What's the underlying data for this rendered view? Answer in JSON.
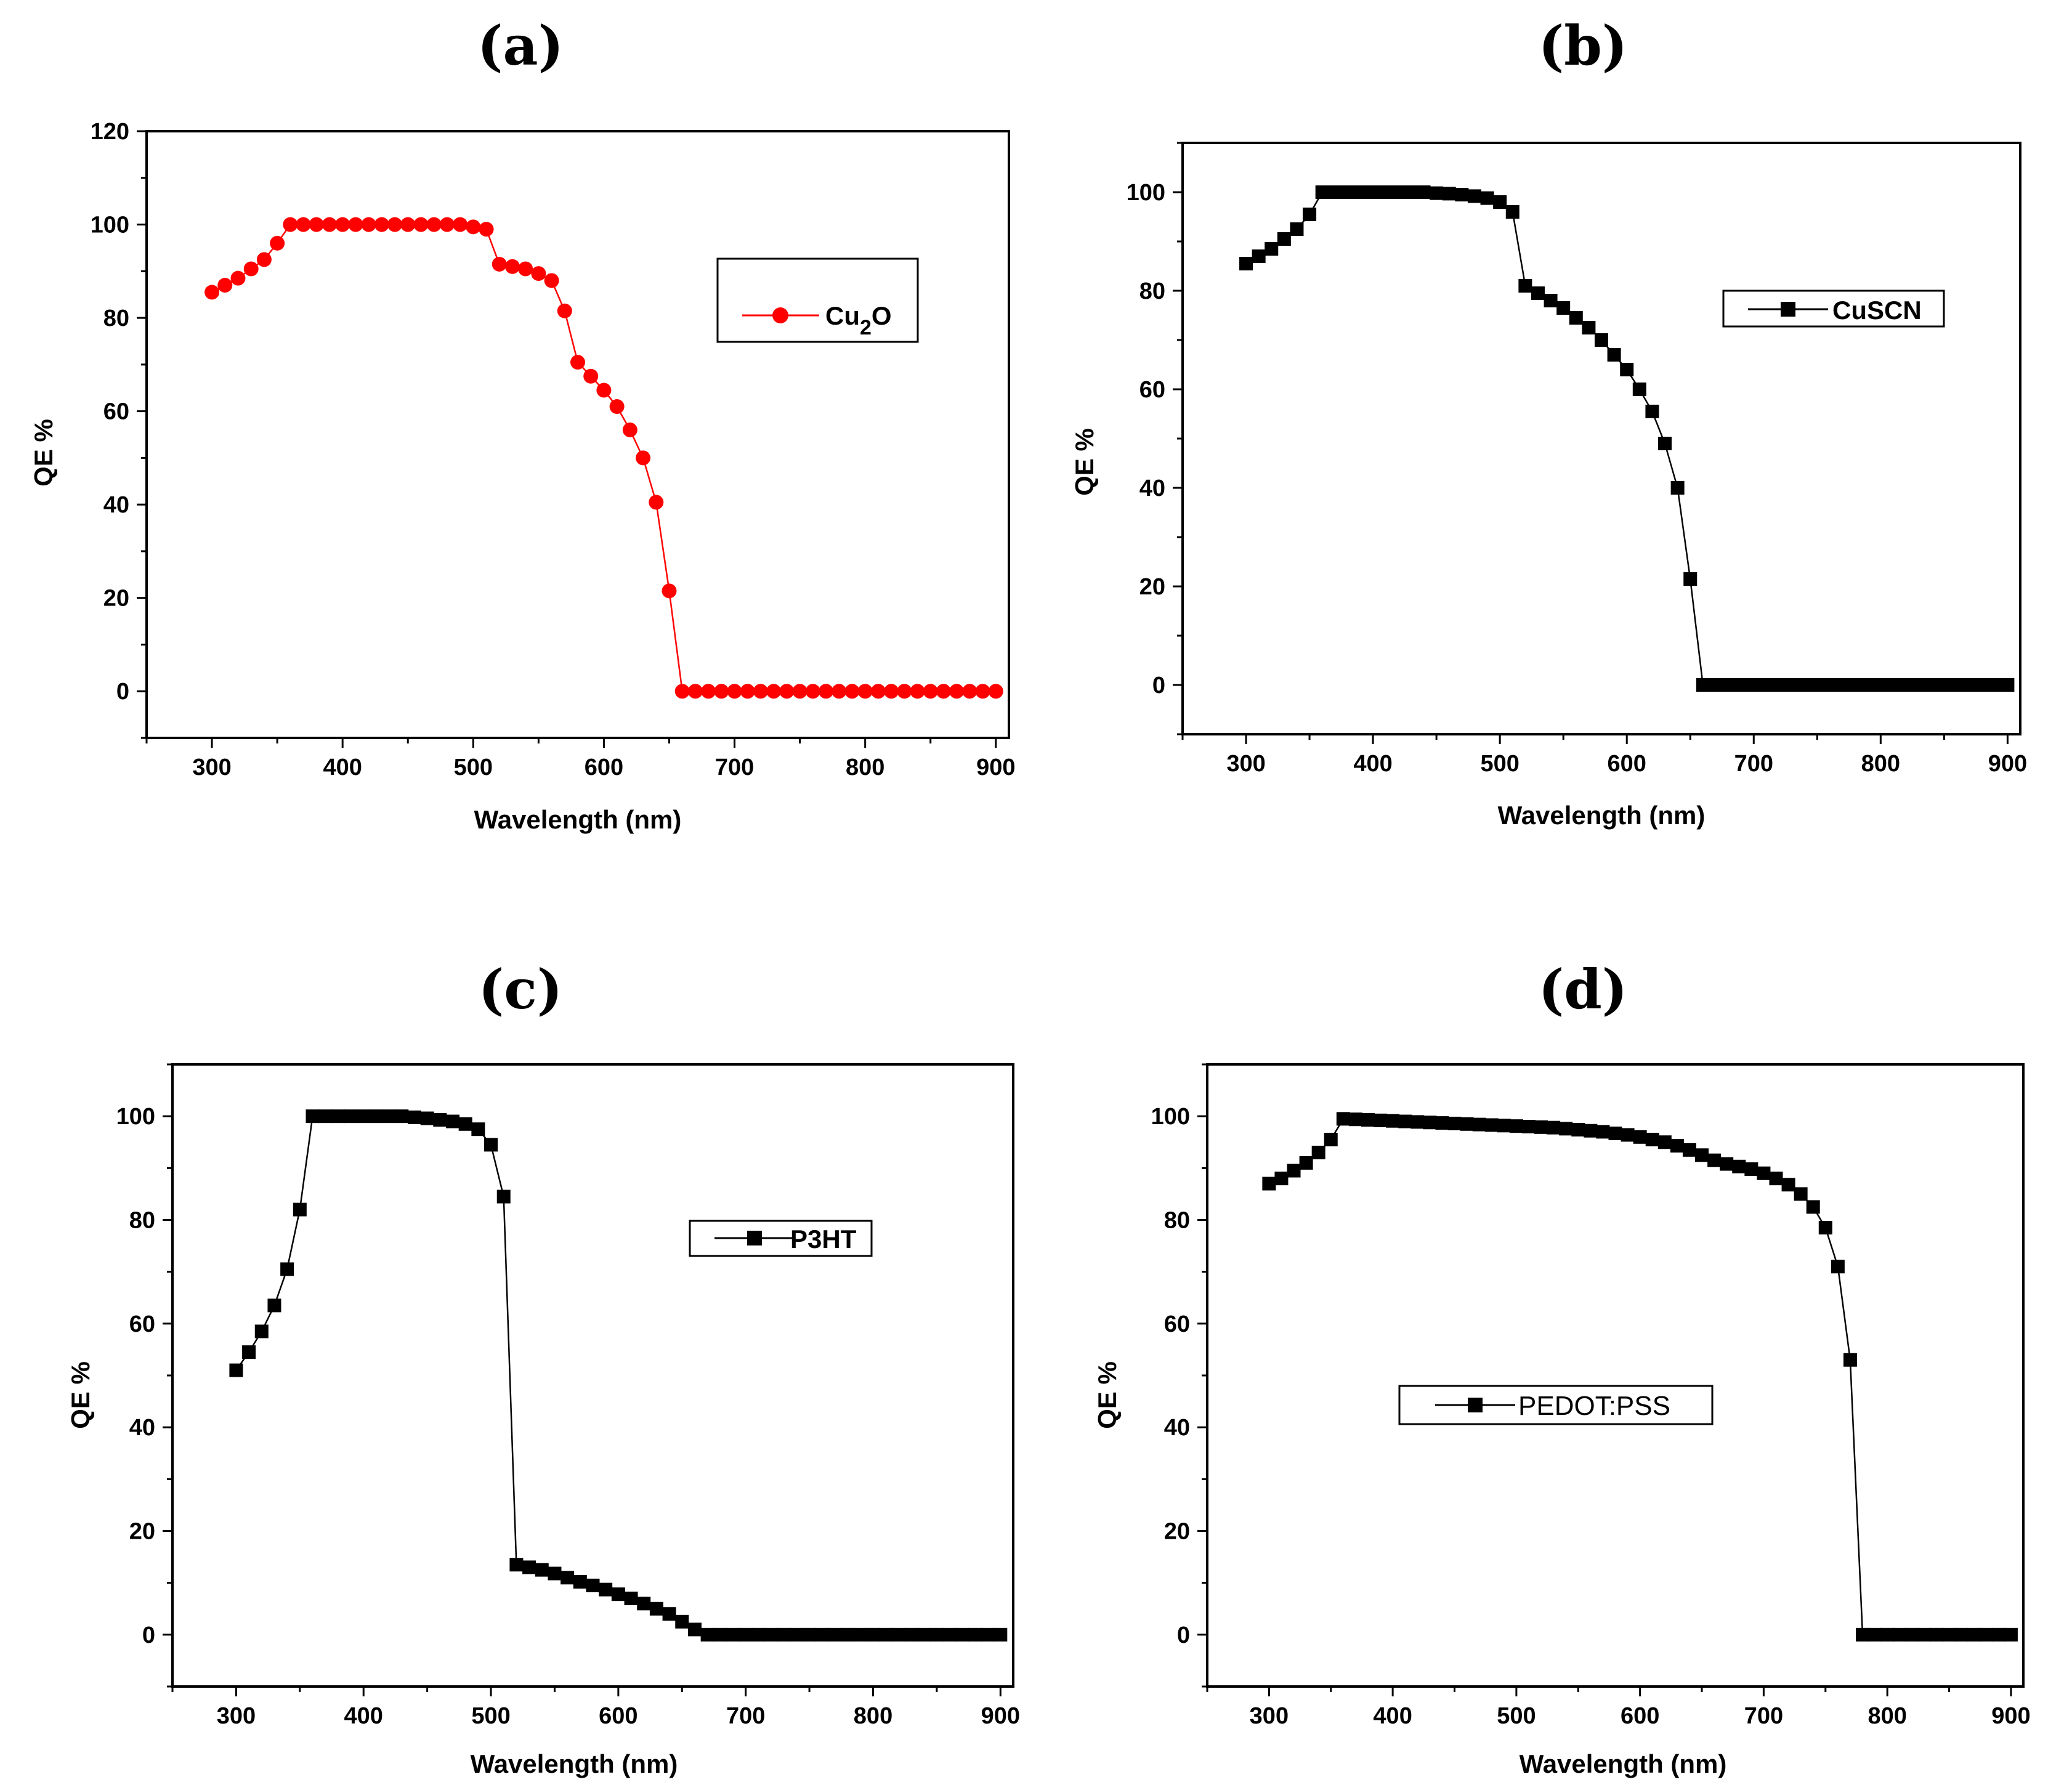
{
  "chart_data": [
    {
      "panel": "(a)",
      "type": "line",
      "xlabel": "Wavelength (nm)",
      "ylabel": "QE %",
      "xlim": [
        250,
        910
      ],
      "ylim": [
        -10,
        120
      ],
      "xticks": [
        300,
        400,
        500,
        600,
        700,
        800,
        900
      ],
      "yticks": [
        0,
        20,
        40,
        60,
        80,
        100,
        120
      ],
      "grid": false,
      "legend": {
        "position": "top-right",
        "entries": [
          {
            "base": "Cu",
            "sub": "2",
            "tail": "O",
            "label": "Cu2O"
          }
        ]
      },
      "series": [
        {
          "name": "Cu2O",
          "color": "#ff0000",
          "marker": "circle",
          "x": [
            300,
            310,
            320,
            330,
            340,
            350,
            360,
            370,
            380,
            390,
            400,
            410,
            420,
            430,
            440,
            450,
            460,
            470,
            480,
            490,
            500,
            510,
            520,
            530,
            540,
            550,
            560,
            570,
            580,
            590,
            600,
            610,
            620,
            630,
            640,
            650,
            660,
            670,
            680,
            690,
            700,
            710,
            720,
            730,
            740,
            750,
            760,
            770,
            780,
            790,
            800,
            810,
            820,
            830,
            840,
            850,
            860,
            870,
            880,
            890,
            900
          ],
          "values": [
            85.5,
            87,
            88.5,
            90.5,
            92.5,
            96,
            100,
            100,
            100,
            100,
            100,
            100,
            100,
            100,
            100,
            100,
            100,
            100,
            100,
            100,
            99.5,
            99,
            91.5,
            91,
            90.5,
            89.5,
            88,
            81.5,
            70.5,
            67.5,
            64.5,
            61,
            56,
            50,
            40.5,
            21.5,
            0,
            0,
            0,
            0,
            0,
            0,
            0,
            0,
            0,
            0,
            0,
            0,
            0,
            0,
            0,
            0,
            0,
            0,
            0,
            0,
            0,
            0,
            0,
            0,
            0
          ]
        }
      ]
    },
    {
      "panel": "(b)",
      "type": "line",
      "xlabel": "Wavelength (nm)",
      "ylabel": "QE %",
      "xlim": [
        250,
        910
      ],
      "ylim": [
        -10,
        110
      ],
      "xticks": [
        300,
        400,
        500,
        600,
        700,
        800,
        900
      ],
      "yticks": [
        0,
        20,
        40,
        60,
        80,
        100
      ],
      "grid": false,
      "legend": {
        "position": "top-right",
        "entries": [
          {
            "label": "CuSCN"
          }
        ]
      },
      "series": [
        {
          "name": "CuSCN",
          "color": "#000000",
          "marker": "square",
          "x": [
            300,
            310,
            320,
            330,
            340,
            350,
            360,
            370,
            380,
            390,
            400,
            410,
            420,
            430,
            440,
            450,
            460,
            470,
            480,
            490,
            500,
            510,
            520,
            530,
            540,
            550,
            560,
            570,
            580,
            590,
            600,
            610,
            620,
            630,
            640,
            650,
            660,
            670,
            680,
            690,
            700,
            710,
            720,
            730,
            740,
            750,
            760,
            770,
            780,
            790,
            800,
            810,
            820,
            830,
            840,
            850,
            860,
            870,
            880,
            890,
            900
          ],
          "values": [
            85.5,
            87,
            88.5,
            90.5,
            92.5,
            95.5,
            100,
            100,
            100,
            100,
            100,
            100,
            100,
            100,
            100,
            99.8,
            99.7,
            99.5,
            99.2,
            98.8,
            98,
            96,
            81,
            79.5,
            78,
            76.5,
            74.5,
            72.5,
            70,
            67,
            64,
            60,
            55.5,
            49,
            40,
            21.5,
            0,
            0,
            0,
            0,
            0,
            0,
            0,
            0,
            0,
            0,
            0,
            0,
            0,
            0,
            0,
            0,
            0,
            0,
            0,
            0,
            0,
            0,
            0,
            0,
            0
          ]
        }
      ]
    },
    {
      "panel": "(c)",
      "type": "line",
      "xlabel": "Wavelength (nm)",
      "ylabel": "QE %",
      "xlim": [
        250,
        910
      ],
      "ylim": [
        -10,
        110
      ],
      "xticks": [
        300,
        400,
        500,
        600,
        700,
        800,
        900
      ],
      "yticks": [
        0,
        20,
        40,
        60,
        80,
        100
      ],
      "grid": false,
      "legend": {
        "position": "top-right",
        "entries": [
          {
            "label": "P3HT"
          }
        ]
      },
      "series": [
        {
          "name": "P3HT",
          "color": "#000000",
          "marker": "square",
          "x": [
            300,
            310,
            320,
            330,
            340,
            350,
            360,
            370,
            380,
            390,
            400,
            410,
            420,
            430,
            440,
            450,
            460,
            470,
            480,
            490,
            500,
            510,
            520,
            530,
            540,
            550,
            560,
            570,
            580,
            590,
            600,
            610,
            620,
            630,
            640,
            650,
            660,
            670,
            680,
            690,
            700,
            710,
            720,
            730,
            740,
            750,
            760,
            770,
            780,
            790,
            800,
            810,
            820,
            830,
            840,
            850,
            860,
            870,
            880,
            890,
            900
          ],
          "values": [
            51,
            54.5,
            58.5,
            63.5,
            70.5,
            82,
            100,
            100,
            100,
            100,
            100,
            100,
            100,
            100,
            99.8,
            99.6,
            99.3,
            99,
            98.5,
            97.5,
            94.5,
            84.5,
            13.5,
            13,
            12.5,
            11.8,
            11,
            10.2,
            9.5,
            8.7,
            7.8,
            7,
            6,
            5,
            4,
            2.5,
            1,
            0,
            0,
            0,
            0,
            0,
            0,
            0,
            0,
            0,
            0,
            0,
            0,
            0,
            0,
            0,
            0,
            0,
            0,
            0,
            0,
            0,
            0,
            0,
            0
          ]
        }
      ]
    },
    {
      "panel": "(d)",
      "type": "line",
      "xlabel": "Wavelength (nm)",
      "ylabel": "QE %",
      "xlim": [
        250,
        910
      ],
      "ylim": [
        -10,
        110
      ],
      "xticks": [
        300,
        400,
        500,
        600,
        700,
        800,
        900
      ],
      "yticks": [
        0,
        20,
        40,
        60,
        80,
        100
      ],
      "grid": false,
      "legend": {
        "position": "center",
        "entries": [
          {
            "label": "PEDOT:PSS"
          }
        ]
      },
      "series": [
        {
          "name": "PEDOT:PSS",
          "color": "#000000",
          "marker": "square",
          "x": [
            300,
            310,
            320,
            330,
            340,
            350,
            360,
            370,
            380,
            390,
            400,
            410,
            420,
            430,
            440,
            450,
            460,
            470,
            480,
            490,
            500,
            510,
            520,
            530,
            540,
            550,
            560,
            570,
            580,
            590,
            600,
            610,
            620,
            630,
            640,
            650,
            660,
            670,
            680,
            690,
            700,
            710,
            720,
            730,
            740,
            750,
            760,
            770,
            780,
            790,
            800,
            810,
            820,
            830,
            840,
            850,
            860,
            870,
            880,
            890,
            900
          ],
          "values": [
            87,
            88,
            89.5,
            91,
            93,
            95.5,
            99.5,
            99.4,
            99.3,
            99.2,
            99.1,
            99,
            98.9,
            98.8,
            98.7,
            98.6,
            98.5,
            98.4,
            98.3,
            98.2,
            98.1,
            98,
            97.9,
            97.8,
            97.6,
            97.4,
            97.2,
            97,
            96.7,
            96.4,
            96,
            95.5,
            95,
            94.3,
            93.5,
            92.5,
            91.5,
            90.8,
            90.3,
            89.8,
            89,
            88,
            86.8,
            85,
            82.5,
            78.5,
            71,
            53,
            0,
            0,
            0,
            0,
            0,
            0,
            0,
            0,
            0,
            0,
            0,
            0,
            0
          ]
        }
      ]
    }
  ]
}
